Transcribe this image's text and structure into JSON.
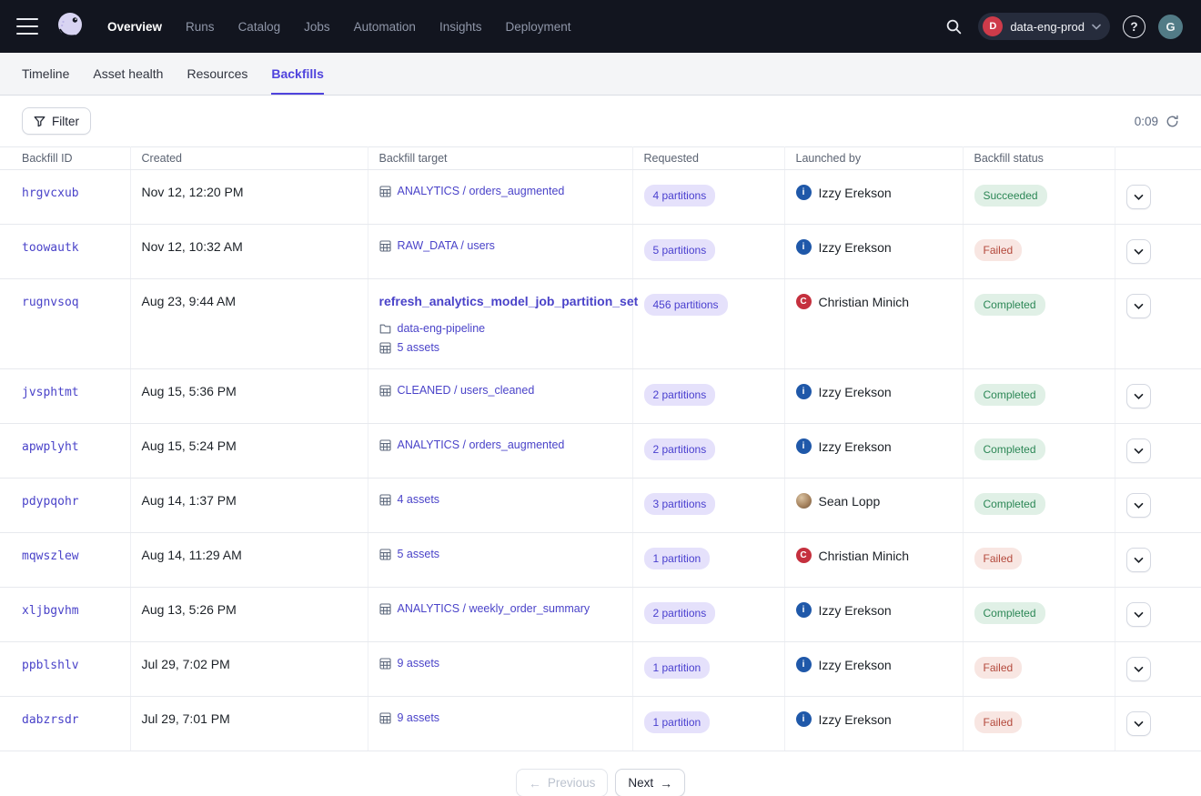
{
  "topnav": {
    "items": [
      {
        "label": "Overview",
        "active": true
      },
      {
        "label": "Runs",
        "active": false
      },
      {
        "label": "Catalog",
        "active": false
      },
      {
        "label": "Jobs",
        "active": false
      },
      {
        "label": "Automation",
        "active": false
      },
      {
        "label": "Insights",
        "active": false
      },
      {
        "label": "Deployment",
        "active": false
      }
    ],
    "deployment": {
      "badge": "D",
      "badge_color": "#ce3b4a",
      "label": "data-eng-prod"
    },
    "help_label": "?",
    "user_initial": "G",
    "user_avatar_color": "#527b86"
  },
  "tabs": {
    "items": [
      {
        "label": "Timeline",
        "active": false
      },
      {
        "label": "Asset health",
        "active": false
      },
      {
        "label": "Resources",
        "active": false
      },
      {
        "label": "Backfills",
        "active": true
      }
    ]
  },
  "toolbar": {
    "filter_label": "Filter",
    "refresh_timer": "0:09"
  },
  "table": {
    "columns": [
      "Backfill ID",
      "Created",
      "Backfill target",
      "Requested",
      "Launched by",
      "Backfill status",
      ""
    ],
    "rows": [
      {
        "id": "hrgvcxub",
        "created": "Nov 12, 12:20 PM",
        "target": {
          "job": null,
          "lines": [
            {
              "icon": "table-icon",
              "label": "ANALYTICS / orders_augmented"
            }
          ]
        },
        "requested": "4 partitions",
        "launched_by": {
          "name": "Izzy Erekson",
          "avatar": {
            "kind": "initial",
            "text": "i",
            "bg": "#1f58a9"
          }
        },
        "status": {
          "label": "Succeeded",
          "kind": "success"
        }
      },
      {
        "id": "toowautk",
        "created": "Nov 12, 10:32 AM",
        "target": {
          "job": null,
          "lines": [
            {
              "icon": "table-icon",
              "label": "RAW_DATA / users"
            }
          ]
        },
        "requested": "5 partitions",
        "launched_by": {
          "name": "Izzy Erekson",
          "avatar": {
            "kind": "initial",
            "text": "i",
            "bg": "#1f58a9"
          }
        },
        "status": {
          "label": "Failed",
          "kind": "failed"
        }
      },
      {
        "id": "rugnvsoq",
        "created": "Aug 23, 9:44 AM",
        "target": {
          "job": "refresh_analytics_model_job_partition_set",
          "lines": [
            {
              "icon": "folder-icon",
              "label": "data-eng-pipeline"
            },
            {
              "icon": "table-icon",
              "label": "5 assets"
            }
          ]
        },
        "requested": "456 partitions",
        "launched_by": {
          "name": "Christian Minich",
          "avatar": {
            "kind": "initial",
            "text": "C",
            "bg": "#c5303e"
          }
        },
        "status": {
          "label": "Completed",
          "kind": "success"
        }
      },
      {
        "id": "jvsphtmt",
        "created": "Aug 15, 5:36 PM",
        "target": {
          "job": null,
          "lines": [
            {
              "icon": "table-icon",
              "label": "CLEANED / users_cleaned"
            }
          ]
        },
        "requested": "2 partitions",
        "launched_by": {
          "name": "Izzy Erekson",
          "avatar": {
            "kind": "initial",
            "text": "i",
            "bg": "#1f58a9"
          }
        },
        "status": {
          "label": "Completed",
          "kind": "success"
        }
      },
      {
        "id": "apwplyht",
        "created": "Aug 15, 5:24 PM",
        "target": {
          "job": null,
          "lines": [
            {
              "icon": "table-icon",
              "label": "ANALYTICS / orders_augmented"
            }
          ]
        },
        "requested": "2 partitions",
        "launched_by": {
          "name": "Izzy Erekson",
          "avatar": {
            "kind": "initial",
            "text": "i",
            "bg": "#1f58a9"
          }
        },
        "status": {
          "label": "Completed",
          "kind": "success"
        }
      },
      {
        "id": "pdypqohr",
        "created": "Aug 14, 1:37 PM",
        "target": {
          "job": null,
          "lines": [
            {
              "icon": "table-icon",
              "label": "4 assets"
            }
          ]
        },
        "requested": "3 partitions",
        "launched_by": {
          "name": "Sean Lopp",
          "avatar": {
            "kind": "photo"
          }
        },
        "status": {
          "label": "Completed",
          "kind": "success"
        }
      },
      {
        "id": "mqwszlew",
        "created": "Aug 14, 11:29 AM",
        "target": {
          "job": null,
          "lines": [
            {
              "icon": "table-icon",
              "label": "5 assets"
            }
          ]
        },
        "requested": "1 partition",
        "launched_by": {
          "name": "Christian Minich",
          "avatar": {
            "kind": "initial",
            "text": "C",
            "bg": "#c5303e"
          }
        },
        "status": {
          "label": "Failed",
          "kind": "failed"
        }
      },
      {
        "id": "xljbgvhm",
        "created": "Aug 13, 5:26 PM",
        "target": {
          "job": null,
          "lines": [
            {
              "icon": "table-icon",
              "label": "ANALYTICS / weekly_order_summary"
            }
          ]
        },
        "requested": "2 partitions",
        "launched_by": {
          "name": "Izzy Erekson",
          "avatar": {
            "kind": "initial",
            "text": "i",
            "bg": "#1f58a9"
          }
        },
        "status": {
          "label": "Completed",
          "kind": "success"
        }
      },
      {
        "id": "ppblshlv",
        "created": "Jul 29, 7:02 PM",
        "target": {
          "job": null,
          "lines": [
            {
              "icon": "table-icon",
              "label": "9 assets"
            }
          ]
        },
        "requested": "1 partition",
        "launched_by": {
          "name": "Izzy Erekson",
          "avatar": {
            "kind": "initial",
            "text": "i",
            "bg": "#1f58a9"
          }
        },
        "status": {
          "label": "Failed",
          "kind": "failed"
        }
      },
      {
        "id": "dabzrsdr",
        "created": "Jul 29, 7:01 PM",
        "target": {
          "job": null,
          "lines": [
            {
              "icon": "table-icon",
              "label": "9 assets"
            }
          ]
        },
        "requested": "1 partition",
        "launched_by": {
          "name": "Izzy Erekson",
          "avatar": {
            "kind": "initial",
            "text": "i",
            "bg": "#1f58a9"
          }
        },
        "status": {
          "label": "Failed",
          "kind": "failed"
        }
      }
    ]
  },
  "pagination": {
    "previous": "Previous",
    "next": "Next"
  },
  "colors": {
    "accent": "#4f43dd",
    "link": "#4a43c9",
    "success_text": "#2c8756",
    "failed_text": "#b4493c"
  }
}
